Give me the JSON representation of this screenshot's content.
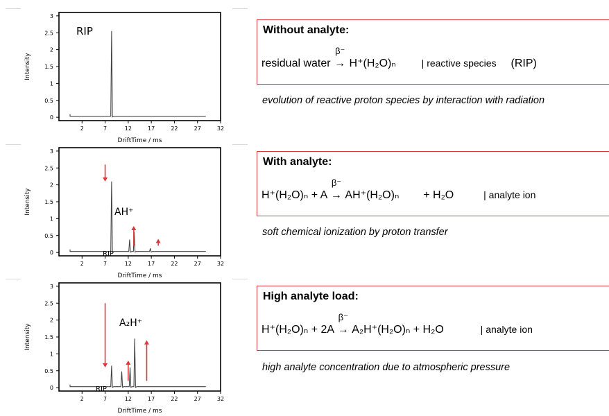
{
  "chart_data": [
    {
      "type": "line",
      "xlabel": "DriftTime / ms",
      "ylabel": "Intensity",
      "x_ticks": [
        "2",
        "7",
        "12",
        "17",
        "22",
        "27",
        "32"
      ],
      "y_ticks": [
        "0",
        "0.5",
        "1",
        "1.5",
        "2",
        "2.5",
        "3"
      ],
      "xlim": [
        -3,
        32
      ],
      "ylim": [
        -0.1,
        3.1
      ],
      "baseline": 0.03,
      "peaks": [
        {
          "x": 8.4,
          "y": 2.55
        }
      ],
      "annotations": [
        {
          "text": "RIP"
        }
      ]
    },
    {
      "type": "line",
      "xlabel": "DriftTime / ms",
      "ylabel": "Intensity",
      "x_ticks": [
        "2",
        "7",
        "12",
        "17",
        "22",
        "27",
        "32"
      ],
      "y_ticks": [
        "0",
        "0.5",
        "1",
        "1.5",
        "2",
        "2.5",
        "3"
      ],
      "xlim": [
        -3,
        32
      ],
      "ylim": [
        -0.1,
        3.1
      ],
      "baseline": 0.03,
      "peaks": [
        {
          "x": 8.4,
          "y": 2.1
        },
        {
          "x": 12.3,
          "y": 0.38
        },
        {
          "x": 13.3,
          "y": 0.6
        },
        {
          "x": 16.8,
          "y": 0.12
        }
      ],
      "annotations": [
        {
          "text": "AH⁺"
        },
        {
          "text": "RIP"
        }
      ],
      "arrows": [
        {
          "direction": "down",
          "x": 7,
          "y_from": 2.6,
          "y_to": 2.2
        },
        {
          "direction": "up",
          "x": 13.2,
          "y_from": 0.2,
          "y_to": 0.68
        },
        {
          "direction": "up",
          "x": 18.5,
          "y_from": 0.2,
          "y_to": 0.3
        }
      ]
    },
    {
      "type": "line",
      "xlabel": "DriftTime / ms",
      "ylabel": "Intensity",
      "x_ticks": [
        "2",
        "7",
        "12",
        "17",
        "22",
        "27",
        "32"
      ],
      "y_ticks": [
        "0",
        "0.5",
        "1",
        "1.5",
        "2",
        "2.5",
        "3"
      ],
      "xlim": [
        -3,
        32
      ],
      "ylim": [
        -0.1,
        3.1
      ],
      "baseline": 0.03,
      "peaks": [
        {
          "x": 8.4,
          "y": 0.65
        },
        {
          "x": 10.6,
          "y": 0.48
        },
        {
          "x": 12.4,
          "y": 0.6
        },
        {
          "x": 13.4,
          "y": 1.45
        }
      ],
      "annotations": [
        {
          "text": "A₂H⁺"
        },
        {
          "text": "RIP"
        }
      ],
      "arrows": [
        {
          "direction": "down",
          "x": 7,
          "y_from": 2.5,
          "y_to": 0.7
        },
        {
          "direction": "up",
          "x": 12,
          "y_from": 0.2,
          "y_to": 0.7
        },
        {
          "direction": "up",
          "x": 16,
          "y_from": 0.2,
          "y_to": 1.3
        }
      ]
    }
  ],
  "boxes": [
    {
      "title": "Without analyte:",
      "equation": {
        "lhs": "residual water",
        "beta": "β⁻",
        "rhs": "H⁺(H₂O)ₙ",
        "extra": "",
        "tag": "| reactive species",
        "tag2": "(RIP)"
      },
      "caption": "evolution of reactive proton species by interaction with radiation"
    },
    {
      "title": "With analyte:",
      "equation": {
        "lhs": "H⁺(H₂O)ₙ + A",
        "beta": "β⁻",
        "rhs": "AH⁺(H₂O)ₙ",
        "extra": "+ H₂O",
        "tag": "| analyte ion",
        "tag2": ""
      },
      "caption": "soft chemical ionization by proton transfer"
    },
    {
      "title": "High analyte load:",
      "equation": {
        "lhs": "H⁺(H₂O)ₙ + 2A",
        "beta": "β⁻",
        "rhs": "A₂H⁺(H₂O)ₙ + H₂O",
        "extra": "",
        "tag": "| analyte ion",
        "tag2": ""
      },
      "caption": "high analyte concentration due to atmospheric pressure"
    }
  ],
  "colors": {
    "accent": "#d9393f",
    "trace": "#444444",
    "axis": "#000000"
  }
}
